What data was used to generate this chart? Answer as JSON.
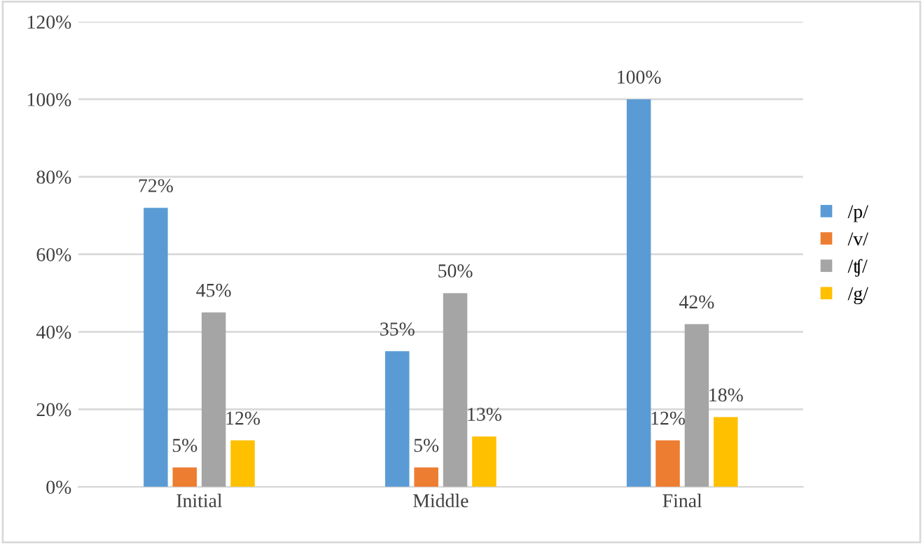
{
  "chart_data": {
    "type": "bar",
    "categories": [
      "Initial",
      "Middle",
      "Final"
    ],
    "series": [
      {
        "name": "/p/",
        "color": "#5b9bd5",
        "values": [
          72,
          35,
          100
        ],
        "value_labels": [
          "72%",
          "35%",
          "100%"
        ]
      },
      {
        "name": "/v/",
        "color": "#ed7d31",
        "values": [
          5,
          5,
          12
        ],
        "value_labels": [
          "5%",
          "5%",
          "12%"
        ]
      },
      {
        "name": "/ʧ/",
        "color": "#a5a5a5",
        "values": [
          45,
          50,
          42
        ],
        "value_labels": [
          "45%",
          "50%",
          "42%"
        ]
      },
      {
        "name": "/g/",
        "color": "#ffc000",
        "values": [
          12,
          13,
          18
        ],
        "value_labels": [
          "12%",
          "13%",
          "18%"
        ]
      }
    ],
    "ylim": [
      0,
      120
    ],
    "yticks": [
      {
        "value": 0,
        "label": "0%"
      },
      {
        "value": 20,
        "label": "20%"
      },
      {
        "value": 40,
        "label": "40%"
      },
      {
        "value": 60,
        "label": "60%"
      },
      {
        "value": 80,
        "label": "80%"
      },
      {
        "value": 100,
        "label": "100%"
      },
      {
        "value": 120,
        "label": "120%"
      }
    ],
    "grid": "y",
    "legend": "right"
  }
}
